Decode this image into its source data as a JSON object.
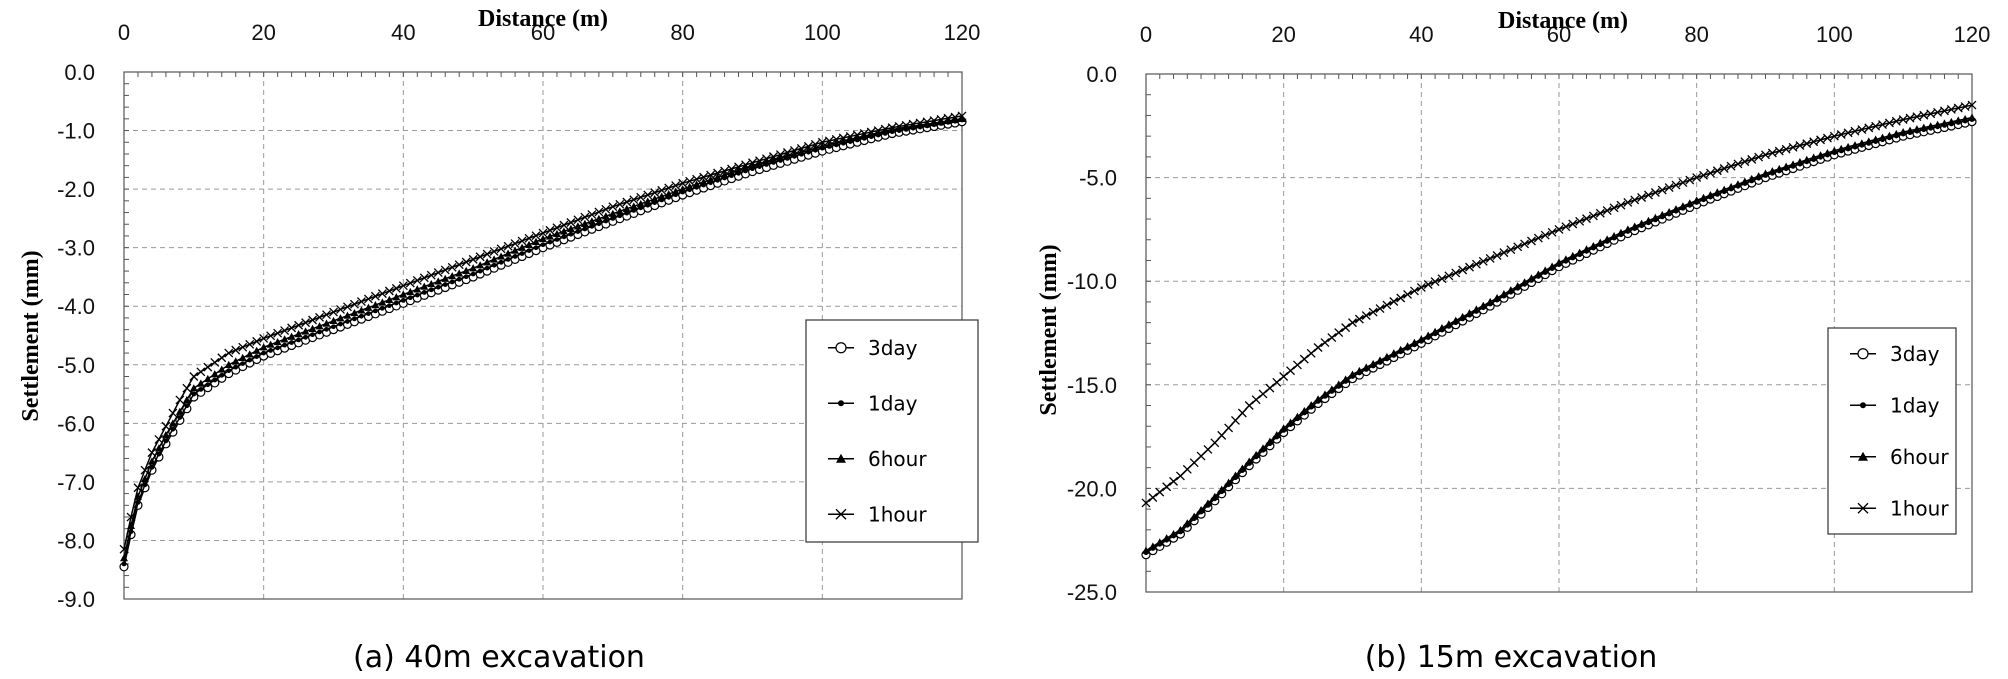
{
  "chart_data": [
    {
      "type": "line",
      "caption": "(a) 40m excavation",
      "xlabel": "Distance (m)",
      "ylabel": "Settlement (mm)",
      "xlim": [
        0,
        120
      ],
      "ylim": [
        -9,
        0
      ],
      "xticks": [
        0,
        20,
        40,
        60,
        80,
        100,
        120
      ],
      "yticks": [
        0,
        -1,
        -2,
        -3,
        -4,
        -5,
        -6,
        -7,
        -8,
        -9
      ],
      "ytick_labels": [
        "0.0",
        "-1.0",
        "-2.0",
        "-3.0",
        "-4.0",
        "-5.0",
        "-6.0",
        "-7.0",
        "-8.0",
        "-9.0"
      ],
      "grid": true,
      "legend_position": "right",
      "x_axis_position": "top",
      "series": [
        {
          "name": "3day",
          "marker": "circle",
          "x": [
            0,
            1,
            2,
            4,
            6,
            8,
            10,
            15,
            20,
            30,
            40,
            50,
            60,
            70,
            80,
            90,
            100,
            110,
            120
          ],
          "y": [
            -8.45,
            -7.9,
            -7.4,
            -6.8,
            -6.35,
            -5.95,
            -5.55,
            -5.15,
            -4.85,
            -4.4,
            -3.95,
            -3.5,
            -3.0,
            -2.55,
            -2.1,
            -1.7,
            -1.35,
            -1.05,
            -0.85
          ]
        },
        {
          "name": "1day",
          "marker": "dot",
          "x": [
            0,
            1,
            2,
            4,
            6,
            8,
            10,
            15,
            20,
            30,
            40,
            50,
            60,
            70,
            80,
            90,
            100,
            110,
            120
          ],
          "y": [
            -8.4,
            -7.85,
            -7.35,
            -6.75,
            -6.3,
            -5.9,
            -5.5,
            -5.1,
            -4.8,
            -4.35,
            -3.9,
            -3.45,
            -2.95,
            -2.5,
            -2.05,
            -1.65,
            -1.3,
            -1.02,
            -0.82
          ]
        },
        {
          "name": "6hour",
          "marker": "triangle",
          "x": [
            0,
            1,
            2,
            4,
            6,
            8,
            10,
            15,
            20,
            30,
            40,
            50,
            60,
            70,
            80,
            90,
            100,
            110,
            120
          ],
          "y": [
            -8.3,
            -7.75,
            -7.25,
            -6.65,
            -6.2,
            -5.8,
            -5.4,
            -5.0,
            -4.7,
            -4.25,
            -3.8,
            -3.35,
            -2.85,
            -2.42,
            -2.0,
            -1.6,
            -1.27,
            -0.98,
            -0.8
          ]
        },
        {
          "name": "1hour",
          "marker": "cross",
          "x": [
            0,
            1,
            2,
            4,
            6,
            8,
            10,
            15,
            20,
            30,
            40,
            50,
            60,
            70,
            80,
            90,
            100,
            110,
            120
          ],
          "y": [
            -8.15,
            -7.6,
            -7.1,
            -6.5,
            -6.05,
            -5.6,
            -5.2,
            -4.8,
            -4.55,
            -4.1,
            -3.65,
            -3.2,
            -2.75,
            -2.3,
            -1.9,
            -1.55,
            -1.2,
            -0.95,
            -0.75
          ]
        }
      ]
    },
    {
      "type": "line",
      "caption": "(b) 15m excavation",
      "xlabel": "Distance (m)",
      "ylabel": "Settlement (mm)",
      "xlim": [
        0,
        120
      ],
      "ylim": [
        -25,
        0
      ],
      "xticks": [
        0,
        20,
        40,
        60,
        80,
        100,
        120
      ],
      "yticks": [
        0,
        -5,
        -10,
        -15,
        -20,
        -25
      ],
      "ytick_labels": [
        "0.0",
        "-5.0",
        "-10.0",
        "-15.0",
        "-20.0",
        "-25.0"
      ],
      "grid": true,
      "legend_position": "right",
      "x_axis_position": "top",
      "series": [
        {
          "name": "3day",
          "marker": "circle",
          "x": [
            0,
            5,
            10,
            15,
            20,
            25,
            30,
            40,
            50,
            60,
            70,
            80,
            90,
            100,
            110,
            120
          ],
          "y": [
            -23.2,
            -22.2,
            -20.6,
            -18.9,
            -17.3,
            -15.9,
            -14.7,
            -13.0,
            -11.2,
            -9.3,
            -7.7,
            -6.3,
            -5.0,
            -3.9,
            -3.0,
            -2.3
          ]
        },
        {
          "name": "1day",
          "marker": "dot",
          "x": [
            0,
            5,
            10,
            15,
            20,
            25,
            30,
            40,
            50,
            60,
            70,
            80,
            90,
            100,
            110,
            120
          ],
          "y": [
            -23.1,
            -22.1,
            -20.5,
            -18.8,
            -17.2,
            -15.8,
            -14.6,
            -12.9,
            -11.1,
            -9.2,
            -7.6,
            -6.2,
            -4.9,
            -3.8,
            -2.9,
            -2.2
          ]
        },
        {
          "name": "6hour",
          "marker": "triangle",
          "x": [
            0,
            5,
            10,
            15,
            20,
            25,
            30,
            40,
            50,
            60,
            70,
            80,
            90,
            100,
            110,
            120
          ],
          "y": [
            -23.0,
            -22.0,
            -20.4,
            -18.7,
            -17.1,
            -15.7,
            -14.5,
            -12.8,
            -11.0,
            -9.1,
            -7.5,
            -6.1,
            -4.8,
            -3.7,
            -2.8,
            -2.1
          ]
        },
        {
          "name": "1hour",
          "marker": "cross",
          "x": [
            0,
            5,
            10,
            15,
            20,
            25,
            30,
            40,
            50,
            60,
            70,
            80,
            90,
            100,
            110,
            120
          ],
          "y": [
            -20.7,
            -19.4,
            -17.8,
            -16.0,
            -14.6,
            -13.2,
            -12.0,
            -10.3,
            -8.9,
            -7.5,
            -6.2,
            -5.0,
            -3.9,
            -3.0,
            -2.2,
            -1.5
          ]
        }
      ]
    }
  ]
}
